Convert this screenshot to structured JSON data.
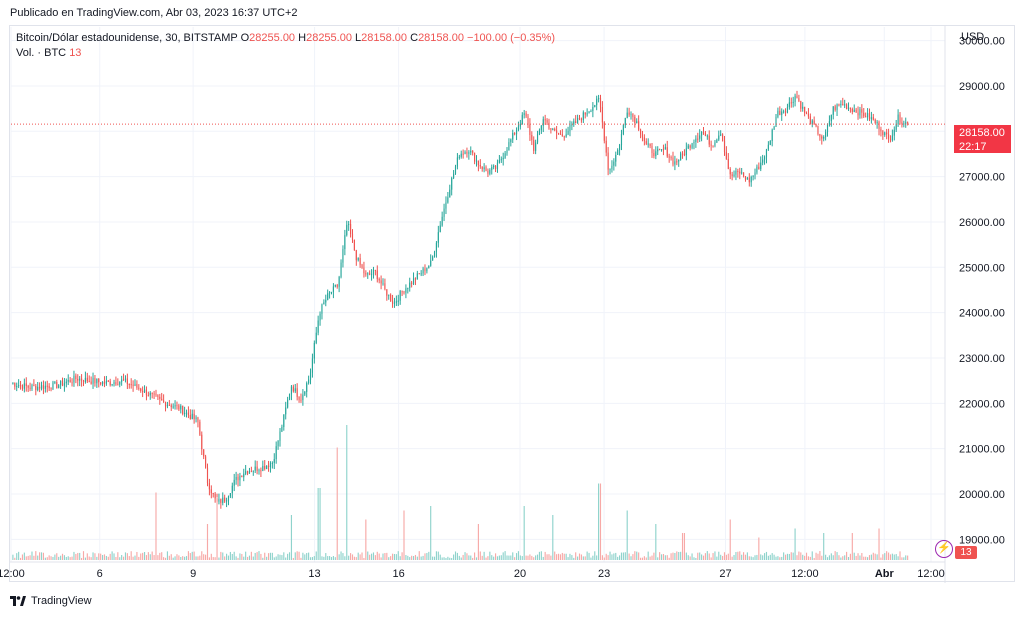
{
  "header": {
    "published": "Publicado en TradingView.com, Abr 03, 2023 16:37 UTC+2"
  },
  "legend": {
    "symbol": "Bitcoin/Dólar estadounidense, 30, BITSTAMP",
    "o_label": "O",
    "o_value": "28255.00",
    "h_label": "H",
    "h_value": "28255.00",
    "l_label": "L",
    "l_value": "28158.00",
    "c_label": "C",
    "c_value": "28158.00",
    "change": "−100.00 (−0.35%)",
    "vol_label": "Vol. · BTC",
    "vol_value": "13"
  },
  "price_axis": {
    "currency": "USD"
  },
  "last_price": {
    "value": "28158.00",
    "countdown": "22:17"
  },
  "volume_badge": "13",
  "footer": {
    "brand": "TradingView"
  },
  "colors": {
    "up": "#26a69a",
    "down": "#ef5350",
    "up_vol": "#8fd3cc",
    "down_vol": "#f7a9a7",
    "grid": "#f0f3fa",
    "last_line": "#ef5350"
  },
  "chart_data": {
    "type": "candlestick",
    "symbol": "BTCUSD",
    "exchange": "BITSTAMP",
    "interval": "30",
    "ylim": [
      18500,
      30300
    ],
    "y_ticks": [
      "30000.00",
      "29000.00",
      "28000.00",
      "27000.00",
      "26000.00",
      "25000.00",
      "24000.00",
      "23000.00",
      "22000.00",
      "21000.00",
      "20000.00",
      "19000.00"
    ],
    "y_tick_values": [
      30000,
      29000,
      28000,
      27000,
      26000,
      25000,
      24000,
      23000,
      22000,
      21000,
      20000,
      19000
    ],
    "x_ticks": [
      "12:00",
      "6",
      "9",
      "13",
      "16",
      "20",
      "23",
      "27",
      "12:00",
      "Abr",
      "12:00"
    ],
    "x_tick_values": [
      0.0,
      9.5,
      19.5,
      32.5,
      41.5,
      54.5,
      63.5,
      76.5,
      85.0,
      93.5,
      98.5
    ],
    "x_range": [
      0,
      100
    ],
    "last_close": 28158,
    "price_path": [
      [
        0,
        22450
      ],
      [
        2,
        22350
      ],
      [
        5,
        22400
      ],
      [
        7,
        22550
      ],
      [
        10,
        22450
      ],
      [
        12,
        22500
      ],
      [
        14,
        22300
      ],
      [
        16,
        22050
      ],
      [
        18,
        21900
      ],
      [
        20,
        21600
      ],
      [
        21,
        20300
      ],
      [
        22,
        19800
      ],
      [
        23,
        19900
      ],
      [
        24,
        20300
      ],
      [
        25,
        20500
      ],
      [
        27,
        20600
      ],
      [
        28,
        20700
      ],
      [
        29,
        21500
      ],
      [
        30,
        22400
      ],
      [
        31,
        22100
      ],
      [
        32,
        22600
      ],
      [
        33,
        24000
      ],
      [
        34,
        24400
      ],
      [
        35,
        24600
      ],
      [
        36,
        26000
      ],
      [
        37,
        25200
      ],
      [
        38,
        24800
      ],
      [
        39,
        24900
      ],
      [
        40,
        24500
      ],
      [
        41,
        24200
      ],
      [
        42,
        24500
      ],
      [
        43,
        24700
      ],
      [
        44,
        24900
      ],
      [
        45,
        25100
      ],
      [
        46,
        26000
      ],
      [
        47,
        26800
      ],
      [
        48,
        27500
      ],
      [
        49,
        27600
      ],
      [
        50,
        27300
      ],
      [
        51,
        27100
      ],
      [
        52,
        27200
      ],
      [
        53,
        27600
      ],
      [
        54,
        28000
      ],
      [
        55,
        28400
      ],
      [
        56,
        27600
      ],
      [
        57,
        28300
      ],
      [
        58,
        28000
      ],
      [
        59,
        27900
      ],
      [
        60,
        28100
      ],
      [
        61,
        28300
      ],
      [
        62,
        28500
      ],
      [
        63,
        28700
      ],
      [
        64,
        27100
      ],
      [
        65,
        27600
      ],
      [
        66,
        28500
      ],
      [
        67,
        28200
      ],
      [
        68,
        27700
      ],
      [
        69,
        27500
      ],
      [
        70,
        27600
      ],
      [
        71,
        27300
      ],
      [
        72,
        27500
      ],
      [
        73,
        27800
      ],
      [
        74,
        28000
      ],
      [
        75,
        27700
      ],
      [
        76,
        28000
      ],
      [
        77,
        27000
      ],
      [
        78,
        27100
      ],
      [
        79,
        26900
      ],
      [
        80,
        27200
      ],
      [
        81,
        27600
      ],
      [
        82,
        28400
      ],
      [
        83,
        28500
      ],
      [
        84,
        28800
      ],
      [
        85,
        28400
      ],
      [
        86,
        28100
      ],
      [
        87,
        27800
      ],
      [
        88,
        28500
      ],
      [
        89,
        28600
      ],
      [
        90,
        28500
      ],
      [
        91,
        28400
      ],
      [
        92,
        28300
      ],
      [
        93,
        28100
      ],
      [
        94,
        27800
      ],
      [
        95,
        28300
      ],
      [
        96,
        28158
      ]
    ],
    "volume_spikes": [
      [
        0,
        1.9
      ],
      [
        15.5,
        1.5
      ],
      [
        21,
        0.8
      ],
      [
        22,
        1.4
      ],
      [
        30,
        1.0
      ],
      [
        33,
        1.6
      ],
      [
        35,
        2.5
      ],
      [
        36,
        3.0
      ],
      [
        38,
        0.9
      ],
      [
        42,
        1.1
      ],
      [
        45,
        1.2
      ],
      [
        50,
        0.8
      ],
      [
        55,
        1.2
      ],
      [
        58,
        1.0
      ],
      [
        63,
        1.7
      ],
      [
        66,
        1.1
      ],
      [
        69,
        0.8
      ],
      [
        72,
        0.6
      ],
      [
        77,
        0.9
      ],
      [
        80,
        0.5
      ],
      [
        84,
        0.7
      ],
      [
        87,
        0.6
      ],
      [
        90,
        0.6
      ],
      [
        93,
        0.7
      ]
    ]
  }
}
